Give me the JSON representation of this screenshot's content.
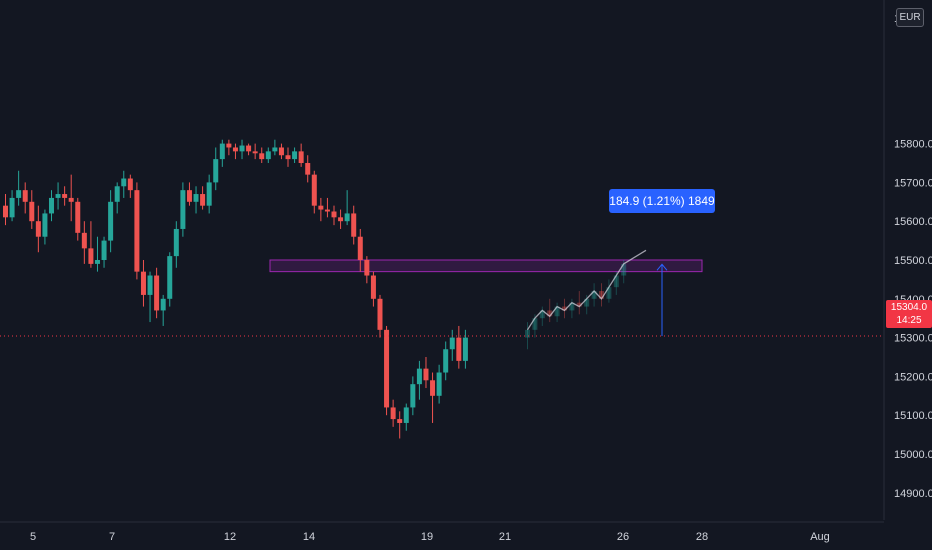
{
  "chart_data": {
    "type": "candlestick",
    "currency": "EUR",
    "y_axis": {
      "ticks": [
        14900,
        15000,
        15100,
        15200,
        15300,
        15400,
        15500,
        15600,
        15700,
        15800
      ],
      "tick_labels": [
        "14900.0",
        "15000.0",
        "15100.0",
        "15200.0",
        "15300.0",
        "15400.0",
        "15500.0",
        "15600.0",
        "15700.0",
        "15800.0"
      ],
      "top_partial_label": "1",
      "range": [
        14850,
        16050
      ]
    },
    "x_axis": {
      "ticks": [
        "5",
        "7",
        "12",
        "14",
        "19",
        "21",
        "26",
        "28",
        "Aug"
      ]
    },
    "candles": [
      [
        15640,
        15670,
        15590,
        15610
      ],
      [
        15610,
        15680,
        15600,
        15660
      ],
      [
        15660,
        15730,
        15640,
        15680
      ],
      [
        15680,
        15700,
        15620,
        15650
      ],
      [
        15650,
        15680,
        15580,
        15600
      ],
      [
        15600,
        15640,
        15520,
        15560
      ],
      [
        15560,
        15630,
        15540,
        15620
      ],
      [
        15620,
        15680,
        15600,
        15660
      ],
      [
        15660,
        15700,
        15630,
        15670
      ],
      [
        15670,
        15690,
        15640,
        15660
      ],
      [
        15660,
        15720,
        15600,
        15650
      ],
      [
        15650,
        15660,
        15550,
        15570
      ],
      [
        15570,
        15600,
        15490,
        15530
      ],
      [
        15530,
        15600,
        15480,
        15490
      ],
      [
        15490,
        15560,
        15470,
        15500
      ],
      [
        15500,
        15560,
        15480,
        15550
      ],
      [
        15550,
        15680,
        15520,
        15650
      ],
      [
        15650,
        15700,
        15620,
        15690
      ],
      [
        15690,
        15730,
        15660,
        15710
      ],
      [
        15710,
        15720,
        15660,
        15680
      ],
      [
        15680,
        15700,
        15450,
        15470
      ],
      [
        15470,
        15500,
        15380,
        15410
      ],
      [
        15410,
        15470,
        15340,
        15460
      ],
      [
        15460,
        15480,
        15350,
        15370
      ],
      [
        15370,
        15410,
        15330,
        15400
      ],
      [
        15400,
        15520,
        15380,
        15510
      ],
      [
        15510,
        15600,
        15480,
        15580
      ],
      [
        15580,
        15700,
        15560,
        15680
      ],
      [
        15680,
        15700,
        15640,
        15650
      ],
      [
        15650,
        15690,
        15620,
        15670
      ],
      [
        15670,
        15690,
        15630,
        15640
      ],
      [
        15640,
        15720,
        15620,
        15700
      ],
      [
        15700,
        15790,
        15680,
        15760
      ],
      [
        15760,
        15810,
        15740,
        15800
      ],
      [
        15800,
        15810,
        15770,
        15790
      ],
      [
        15790,
        15800,
        15760,
        15780
      ],
      [
        15780,
        15810,
        15760,
        15795
      ],
      [
        15795,
        15800,
        15770,
        15780
      ],
      [
        15780,
        15800,
        15760,
        15775
      ],
      [
        15775,
        15790,
        15750,
        15760
      ],
      [
        15760,
        15790,
        15750,
        15780
      ],
      [
        15780,
        15810,
        15770,
        15790
      ],
      [
        15790,
        15800,
        15760,
        15770
      ],
      [
        15770,
        15790,
        15740,
        15760
      ],
      [
        15760,
        15790,
        15750,
        15780
      ],
      [
        15780,
        15800,
        15740,
        15750
      ],
      [
        15750,
        15770,
        15700,
        15720
      ],
      [
        15720,
        15730,
        15620,
        15640
      ],
      [
        15640,
        15660,
        15600,
        15630
      ],
      [
        15630,
        15660,
        15610,
        15625
      ],
      [
        15625,
        15640,
        15590,
        15610
      ],
      [
        15610,
        15630,
        15580,
        15600
      ],
      [
        15600,
        15680,
        15590,
        15620
      ],
      [
        15620,
        15640,
        15540,
        15560
      ],
      [
        15560,
        15580,
        15470,
        15500
      ],
      [
        15500,
        15510,
        15440,
        15460
      ],
      [
        15460,
        15470,
        15380,
        15400
      ],
      [
        15400,
        15410,
        15300,
        15320
      ],
      [
        15320,
        15330,
        15100,
        15120
      ],
      [
        15120,
        15140,
        15070,
        15090
      ],
      [
        15090,
        15110,
        15040,
        15080
      ],
      [
        15080,
        15130,
        15060,
        15120
      ],
      [
        15120,
        15200,
        15100,
        15180
      ],
      [
        15180,
        15240,
        15140,
        15220
      ],
      [
        15220,
        15250,
        15170,
        15190
      ],
      [
        15190,
        15210,
        15080,
        15150
      ],
      [
        15150,
        15230,
        15130,
        15210
      ],
      [
        15210,
        15290,
        15190,
        15270
      ],
      [
        15270,
        15320,
        15240,
        15300
      ],
      [
        15300,
        15330,
        15220,
        15240
      ],
      [
        15240,
        15320,
        15220,
        15300
      ]
    ],
    "projection_candles": [
      [
        15300,
        15340,
        15270,
        15320
      ],
      [
        15320,
        15360,
        15300,
        15350
      ],
      [
        15350,
        15380,
        15330,
        15370
      ],
      [
        15370,
        15400,
        15340,
        15355
      ],
      [
        15355,
        15390,
        15340,
        15380
      ],
      [
        15380,
        15400,
        15350,
        15370
      ],
      [
        15370,
        15400,
        15350,
        15390
      ],
      [
        15390,
        15420,
        15360,
        15380
      ],
      [
        15380,
        15410,
        15360,
        15400
      ],
      [
        15400,
        15440,
        15380,
        15420
      ],
      [
        15420,
        15440,
        15380,
        15400
      ],
      [
        15400,
        15450,
        15390,
        15430
      ],
      [
        15430,
        15470,
        15410,
        15460
      ],
      [
        15460,
        15500,
        15440,
        15490
      ]
    ],
    "zone": {
      "from": 15470,
      "to": 15500
    },
    "current_price": {
      "value": 15304.0,
      "label": "15304.0",
      "countdown": "14:25"
    },
    "measure": {
      "label": "184.9 (1.21%) 1849",
      "start_price": 15304,
      "end_price": 15489
    },
    "colors": {
      "up": "#26a69a",
      "down": "#ef5350",
      "zone": "#9c27b0",
      "measure": "#2962ff",
      "price_line": "#f23645"
    }
  }
}
